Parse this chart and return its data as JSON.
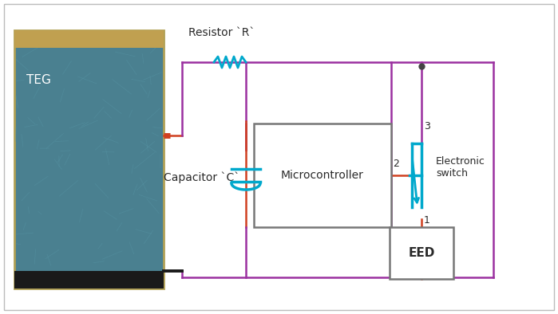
{
  "fig_width": 6.99,
  "fig_height": 3.94,
  "dpi": 100,
  "bg_color": "#ffffff",
  "wire_purple": "#9b30a0",
  "wire_red": "#d04020",
  "wire_cyan": "#00a8cc",
  "wire_black": "#1a1a1a",
  "teg_face": "#4a8090",
  "teg_edge": "#b0a055",
  "teg_top_strip": "#c0a050",
  "teg_bot_strip": "#1a1a1a",
  "label_color": "#2a2a2a",
  "resistor_label": "Resistor `R`",
  "capacitor_label": "Capacitor `C`",
  "microcontroller_label": "Microcontroller",
  "eed_label": "EED",
  "electronic_switch_label": "Electronic\nswitch",
  "teg_label": "TEG",
  "pin1": "1",
  "pin2": "2",
  "pin3": "3",
  "label_fontsize": 10,
  "small_fontsize": 9,
  "teg_fontsize": 11
}
